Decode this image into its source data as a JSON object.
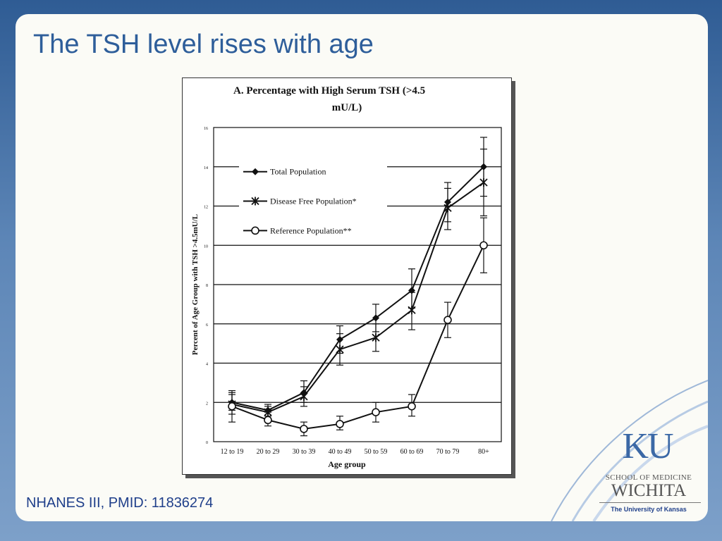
{
  "slide": {
    "title": "The TSH level rises with age",
    "citation": "NHANES III, PMID: 11836274"
  },
  "logo": {
    "mark": "KU",
    "school": "SCHOOL OF MEDICINE",
    "city": "WICHITA",
    "university": "The University of Kansas"
  },
  "colors": {
    "title": "#2e5e9a",
    "citation": "#1f3f8a",
    "background_top": "#2f5c94"
  },
  "chart_data": {
    "type": "line",
    "title": "A.  Percentage with High Serum TSH (>4.5 mU/L)",
    "xlabel": "Age group",
    "ylabel": "Percent of Age Group with TSH >4.5mU/L",
    "categories": [
      "12 to 19",
      "20 to 29",
      "30 to 39",
      "40 to 49",
      "50 to 59",
      "60 to 69",
      "70 to 79",
      "80+"
    ],
    "ylim": [
      0,
      16
    ],
    "yticks": [
      "0",
      "2",
      "4",
      "6",
      "8",
      "10",
      "12",
      "14",
      "16"
    ],
    "grid": "horizontal",
    "legend_position": "top-left",
    "series": [
      {
        "name": "Total Population",
        "marker": "diamond",
        "values": [
          2.0,
          1.6,
          2.5,
          5.2,
          6.3,
          7.7,
          12.2,
          14.0
        ],
        "err_low": [
          1.6,
          1.3,
          2.0,
          4.5,
          5.6,
          6.8,
          11.2,
          12.5
        ],
        "err_high": [
          2.5,
          1.9,
          3.1,
          5.9,
          7.0,
          8.8,
          13.2,
          15.5
        ]
      },
      {
        "name": "Disease Free Population*",
        "marker": "asterisk",
        "values": [
          1.9,
          1.5,
          2.3,
          4.7,
          5.3,
          6.7,
          11.9,
          13.2
        ],
        "err_low": [
          1.4,
          1.2,
          1.8,
          3.9,
          4.6,
          5.7,
          10.8,
          11.5
        ],
        "err_high": [
          2.4,
          1.8,
          2.8,
          5.5,
          6.0,
          7.6,
          12.9,
          14.9
        ]
      },
      {
        "name": "Reference Population**",
        "marker": "circle",
        "values": [
          1.8,
          1.1,
          0.65,
          0.9,
          1.5,
          1.8,
          6.2,
          10.0
        ],
        "err_low": [
          1.0,
          0.8,
          0.3,
          0.6,
          1.0,
          1.3,
          5.3,
          8.6
        ],
        "err_high": [
          2.6,
          1.5,
          1.0,
          1.3,
          2.0,
          2.4,
          7.1,
          11.4
        ]
      }
    ]
  }
}
